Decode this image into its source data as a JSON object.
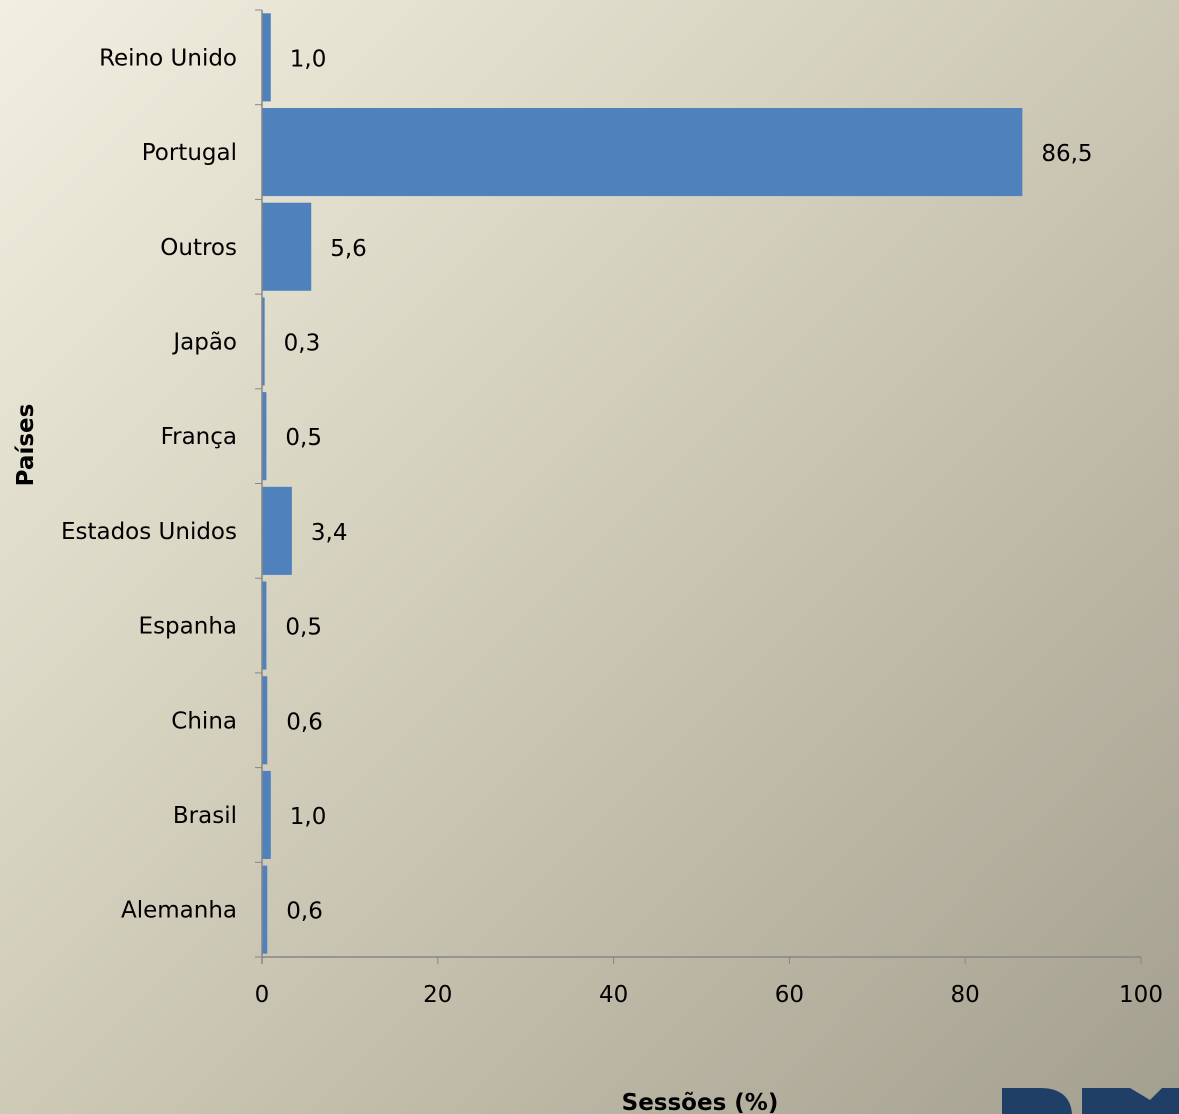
{
  "chart_data": {
    "type": "bar",
    "orientation": "horizontal",
    "categories": [
      "Reino Unido",
      "Portugal",
      "Outros",
      "Japão",
      "França",
      "Estados Unidos",
      "Espanha",
      "China",
      "Brasil",
      "Alemanha"
    ],
    "values": [
      1.0,
      86.5,
      5.6,
      0.3,
      0.5,
      3.4,
      0.5,
      0.6,
      1.0,
      0.6
    ],
    "value_labels": [
      "1,0",
      "86,5",
      "5,6",
      "0,3",
      "0,5",
      "3,4",
      "0,5",
      "0,6",
      "1,0",
      "0,6"
    ],
    "xlabel": "Sessões (%)",
    "ylabel": "Países",
    "xlim": [
      0,
      100
    ],
    "x_ticks": [
      "0",
      "20",
      "40",
      "60",
      "80",
      "100"
    ],
    "grid": false,
    "bar_color": "#4f81bd",
    "axis_color": "#868686"
  },
  "logo": {
    "text": "DREA",
    "color": "#1f3f66"
  }
}
